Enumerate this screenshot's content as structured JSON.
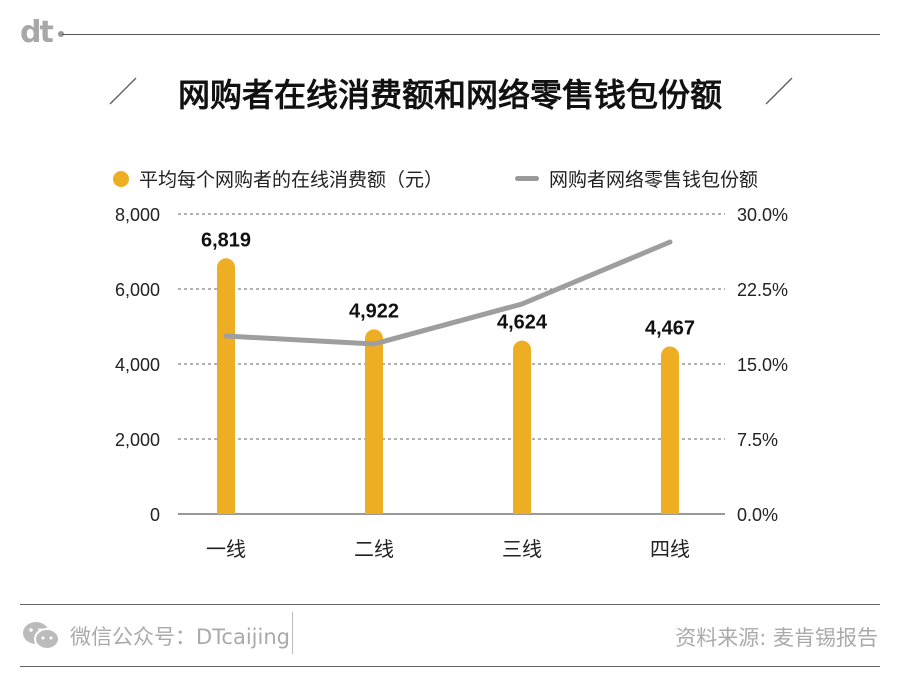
{
  "header": {
    "brand": "dt",
    "title": "网购者在线消费额和网络零售钱包份额"
  },
  "legend": {
    "bar_label": "平均每个网购者的在线消费额（元）",
    "line_label": "网购者网络零售钱包份额"
  },
  "colors": {
    "bar": "#EEAE24",
    "line": "#9E9E9E"
  },
  "chart_data": {
    "type": "bar",
    "categories": [
      "一线",
      "二线",
      "三线",
      "四线"
    ],
    "series": [
      {
        "name": "平均每个网购者的在线消费额（元）",
        "type": "bar",
        "axis": "left",
        "values": [
          6819,
          4922,
          4624,
          4467
        ],
        "labels": [
          "6,819",
          "4,922",
          "4,624",
          "4,467"
        ]
      },
      {
        "name": "网购者网络零售钱包份额",
        "type": "line",
        "axis": "right",
        "values": [
          17.8,
          17.0,
          21.0,
          27.2
        ]
      }
    ],
    "ylim_left": [
      0,
      8000
    ],
    "ylim_right": [
      0,
      30
    ],
    "left_ticks": [
      "0",
      "2,000",
      "4,000",
      "6,000",
      "8,000"
    ],
    "right_ticks": [
      "0.0%",
      "7.5%",
      "15.0%",
      "22.5%",
      "30.0%"
    ],
    "grid": true
  },
  "footer": {
    "wechat": "微信公众号：DTcaijing",
    "source": "资料来源: 麦肯锡报告"
  }
}
